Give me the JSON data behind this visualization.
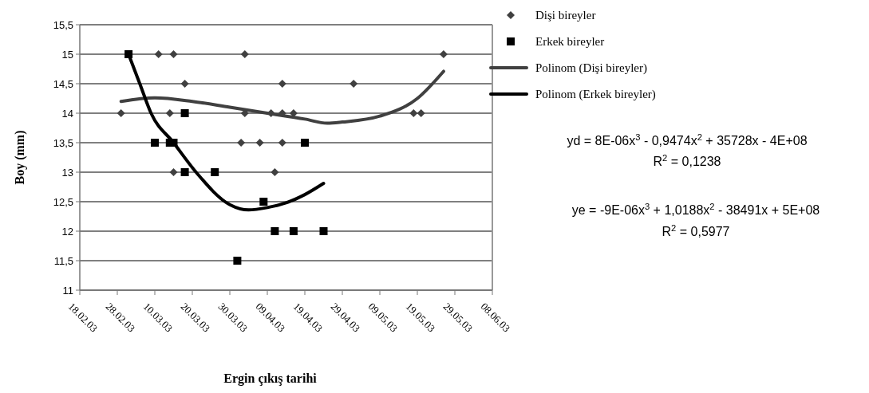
{
  "chart_data": {
    "type": "scatter",
    "xlabel": "Ergin çıkış tarihi",
    "ylabel": "Boy (mm)",
    "xlim": [
      "--02-18",
      "--06-08"
    ],
    "xticks": [
      {
        "value": "--02-18",
        "label": "18.02.03"
      },
      {
        "value": "--02-28",
        "label": "28.02.03"
      },
      {
        "value": "--03-10",
        "label": "10.03.03"
      },
      {
        "value": "--03-20",
        "label": "20.03.03"
      },
      {
        "value": "--03-30",
        "label": "30.03.03"
      },
      {
        "value": "--04-09",
        "label": "09.04.03"
      },
      {
        "value": "--04-19",
        "label": "19.04.03"
      },
      {
        "value": "--04-29",
        "label": "29.04.03"
      },
      {
        "value": "--05-09",
        "label": "09.05.03"
      },
      {
        "value": "--05-19",
        "label": "19.05.03"
      },
      {
        "value": "--05-29",
        "label": "29.05.03"
      },
      {
        "value": "--06-08",
        "label": "08.06.03"
      }
    ],
    "ylim": [
      11,
      15.5
    ],
    "yticks": [
      11,
      {
        "value": 11.5,
        "label": "11,5"
      },
      12,
      {
        "value": 12.5,
        "label": "12,5"
      },
      13,
      {
        "value": 13.5,
        "label": "13,5"
      },
      14,
      {
        "value": 14.5,
        "label": "14,5"
      },
      15,
      {
        "value": 15.5,
        "label": "15,5"
      }
    ],
    "grid": "y",
    "legend": "top right",
    "series": [
      {
        "name": "Dişi bireyler",
        "marker": "diamond",
        "color": "#404040",
        "x": [
          "--03-11",
          "--03-15",
          "--04-03",
          "--05-26",
          "--03-18",
          "--04-13",
          "--05-02",
          "--03-01",
          "--03-14",
          "--04-03",
          "--04-10",
          "--04-13",
          "--04-16",
          "--05-18",
          "--05-20",
          "--04-02",
          "--04-07",
          "--04-13",
          "--03-15",
          "--04-11"
        ],
        "values": [
          15,
          15,
          15,
          15,
          14.5,
          14.5,
          14.5,
          14,
          14,
          14,
          14,
          14,
          14,
          14,
          14,
          13.5,
          13.5,
          13.5,
          13,
          13
        ]
      },
      {
        "name": "Erkek bireyler",
        "marker": "square",
        "color": "#000000",
        "x": [
          "--03-03",
          "--03-18",
          "--03-10",
          "--03-14",
          "--03-15",
          "--04-19",
          "--03-18",
          "--03-26",
          "--04-08",
          "--04-11",
          "--04-16",
          "--04-24",
          "--04-01"
        ],
        "values": [
          15,
          14,
          13.5,
          13.5,
          13.5,
          13.5,
          13,
          13,
          12.5,
          12,
          12,
          12,
          11.5
        ]
      },
      {
        "name": "Polinom (Dişi bireyler)",
        "type": "line",
        "color": "#404040",
        "x": [
          "--03-01",
          "--03-10",
          "--03-20",
          "--03-30",
          "--04-09",
          "--04-19",
          "--04-25",
          "--04-29",
          "--05-09",
          "--05-19",
          "--05-26"
        ],
        "values": [
          14.2,
          14.26,
          14.2,
          14.1,
          14.0,
          13.9,
          13.83,
          13.85,
          13.95,
          14.25,
          14.71
        ]
      },
      {
        "name": "Polinom (Erkek bireyler)",
        "type": "line",
        "color": "#000000",
        "x": [
          "--03-03",
          "--03-06",
          "--03-09",
          "--03-15",
          "--03-21",
          "--03-30",
          "--04-04",
          "--04-09",
          "--04-14",
          "--04-19",
          "--04-24"
        ],
        "values": [
          15.0,
          14.5,
          14.0,
          13.5,
          13.0,
          12.45,
          12.36,
          12.4,
          12.48,
          12.62,
          12.81
        ]
      }
    ],
    "annotations": [
      "yd = 8E-06x$^{3}$ - 0,9474x$^{2}$ + 35728x - 4E+08",
      "R$^{2}$ = 0,1238",
      "ye = -9E-06x$^{3}$ + 1,0188x$^{2}$ - 38491x + 5E+08",
      "R$^{2}$ = 0,5977"
    ]
  }
}
